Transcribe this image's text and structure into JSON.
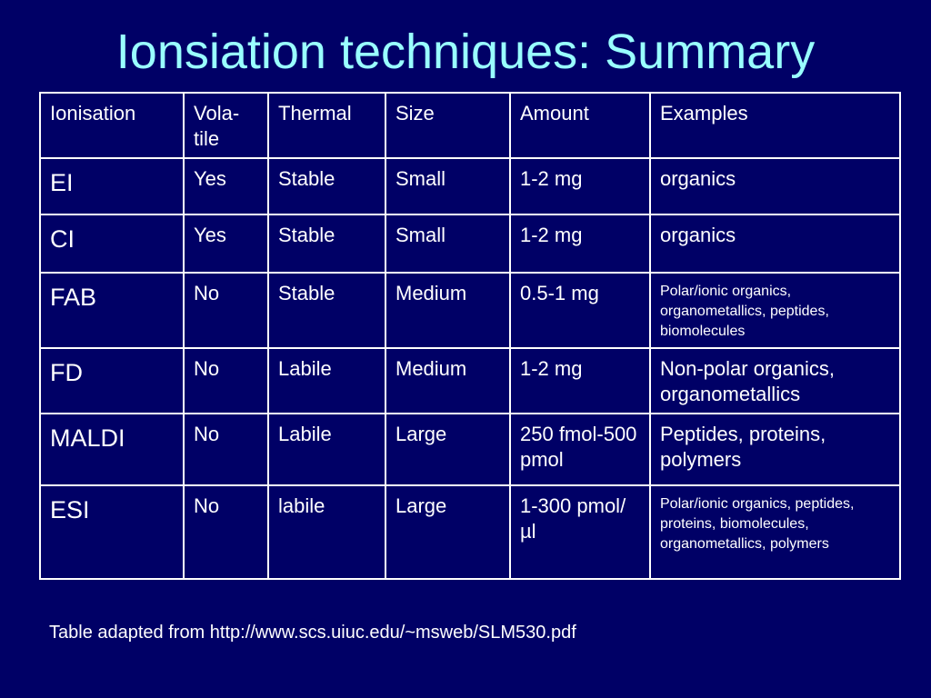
{
  "slide": {
    "title": "Ionsiation techniques: Summary",
    "footnote": "Table adapted from http://www.scs.uiuc.edu/~msweb/SLM530.pdf"
  },
  "colors": {
    "background": "#000066",
    "title": "#99ffff",
    "text": "#ffffff",
    "grid": "#ffffff"
  },
  "table": {
    "headers": [
      "Ionisation",
      "Vola-tile",
      "Thermal",
      "Size",
      "Amount",
      "Examples"
    ],
    "rows": [
      [
        "EI",
        "Yes",
        "Stable",
        "Small",
        "1-2 mg",
        "organics"
      ],
      [
        "CI",
        "Yes",
        "Stable",
        "Small",
        "1-2 mg",
        "organics"
      ],
      [
        "FAB",
        "No",
        "Stable",
        "Medium",
        "0.5-1 mg",
        "Polar/ionic organics, organometallics, peptides, biomolecules"
      ],
      [
        "FD",
        "No",
        "Labile",
        "Medium",
        "1-2 mg",
        "Non-polar organics, organometallics"
      ],
      [
        "MALDI",
        "No",
        "Labile",
        "Large",
        "250 fmol-500 pmol",
        "Peptides, proteins, polymers"
      ],
      [
        "ESI",
        "No",
        "labile",
        "Large",
        "1-300 pmol/µl",
        "Polar/ionic organics, peptides, proteins, biomolecules, organometallics, polymers"
      ]
    ]
  }
}
